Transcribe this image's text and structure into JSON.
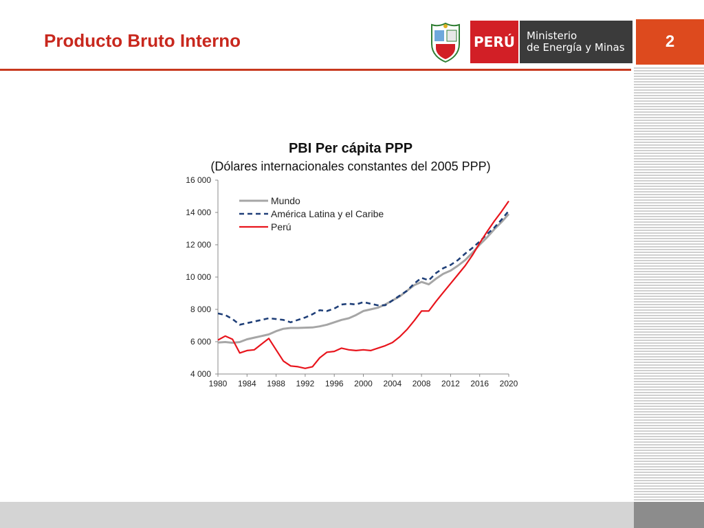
{
  "slide": {
    "title": "Producto Bruto Interno",
    "page_number": "2"
  },
  "logo": {
    "country": "PERÚ",
    "ministry_line1": "Ministerio",
    "ministry_line2": "de Energía y Minas"
  },
  "colors": {
    "title": "#c8281e",
    "accent": "#dd4a1e",
    "mundo": "#a6a6a6",
    "america_latina": "#1f3f78",
    "peru": "#e8141c"
  },
  "chart_data": {
    "type": "line",
    "title": "PBI Per cápita PPP",
    "subtitle": "(Dólares internacionales constantes del 2005 PPP)",
    "xlabel": "",
    "ylabel": "",
    "xlim": [
      1980,
      2020
    ],
    "ylim": [
      4000,
      16000
    ],
    "x_ticks": [
      1980,
      1984,
      1988,
      1992,
      1996,
      2000,
      2004,
      2008,
      2012,
      2016,
      2020
    ],
    "y_ticks": [
      4000,
      6000,
      8000,
      10000,
      12000,
      14000,
      16000
    ],
    "y_tick_labels": [
      "4 000",
      "6 000",
      "8 000",
      "10 000",
      "12 000",
      "14 000",
      "16 000"
    ],
    "grid": false,
    "legend": "top-left",
    "series": [
      {
        "name": "Mundo",
        "style": "solid",
        "x": [
          1980,
          1981,
          1982,
          1983,
          1984,
          1985,
          1986,
          1987,
          1988,
          1989,
          1990,
          1991,
          1992,
          1993,
          1994,
          1995,
          1996,
          1997,
          1998,
          1999,
          2000,
          2001,
          2002,
          2003,
          2004,
          2005,
          2006,
          2007,
          2008,
          2009,
          2010,
          2011,
          2012,
          2013,
          2014,
          2015,
          2016,
          2017,
          2018,
          2019,
          2020
        ],
        "values": [
          5950,
          5980,
          5930,
          5980,
          6150,
          6250,
          6350,
          6450,
          6650,
          6800,
          6850,
          6850,
          6870,
          6880,
          6950,
          7050,
          7200,
          7350,
          7450,
          7650,
          7900,
          8000,
          8100,
          8300,
          8550,
          8800,
          9150,
          9500,
          9700,
          9550,
          9900,
          10200,
          10400,
          10700,
          11050,
          11500,
          12000,
          12450,
          12950,
          13400,
          13900
        ]
      },
      {
        "name": "América Latina y el Caribe",
        "style": "dashed",
        "x": [
          1980,
          1981,
          1982,
          1983,
          1984,
          1985,
          1986,
          1987,
          1988,
          1989,
          1990,
          1991,
          1992,
          1993,
          1994,
          1995,
          1996,
          1997,
          1998,
          1999,
          2000,
          2001,
          2002,
          2003,
          2004,
          2005,
          2006,
          2007,
          2008,
          2009,
          2010,
          2011,
          2012,
          2013,
          2014,
          2015,
          2016,
          2017,
          2018,
          2019,
          2020
        ],
        "values": [
          7750,
          7650,
          7400,
          7050,
          7150,
          7250,
          7350,
          7450,
          7400,
          7350,
          7200,
          7350,
          7500,
          7700,
          7950,
          7900,
          8050,
          8300,
          8350,
          8300,
          8450,
          8350,
          8250,
          8250,
          8550,
          8850,
          9150,
          9600,
          9950,
          9800,
          10250,
          10550,
          10750,
          11050,
          11450,
          11800,
          12200,
          12650,
          13050,
          13550,
          14100
        ]
      },
      {
        "name": "Perú",
        "style": "solid",
        "x": [
          1980,
          1981,
          1982,
          1983,
          1984,
          1985,
          1986,
          1987,
          1988,
          1989,
          1990,
          1991,
          1992,
          1993,
          1994,
          1995,
          1996,
          1997,
          1998,
          1999,
          2000,
          2001,
          2002,
          2003,
          2004,
          2005,
          2006,
          2007,
          2008,
          2009,
          2010,
          2011,
          2012,
          2013,
          2014,
          2015,
          2016,
          2017,
          2018,
          2019,
          2020
        ],
        "values": [
          6100,
          6350,
          6150,
          5300,
          5450,
          5500,
          5850,
          6200,
          5500,
          4800,
          4500,
          4450,
          4350,
          4450,
          5000,
          5350,
          5400,
          5600,
          5500,
          5450,
          5500,
          5450,
          5600,
          5750,
          5950,
          6300,
          6750,
          7300,
          7900,
          7900,
          8500,
          9050,
          9600,
          10150,
          10700,
          11350,
          12100,
          12800,
          13450,
          14050,
          14700
        ]
      }
    ]
  }
}
